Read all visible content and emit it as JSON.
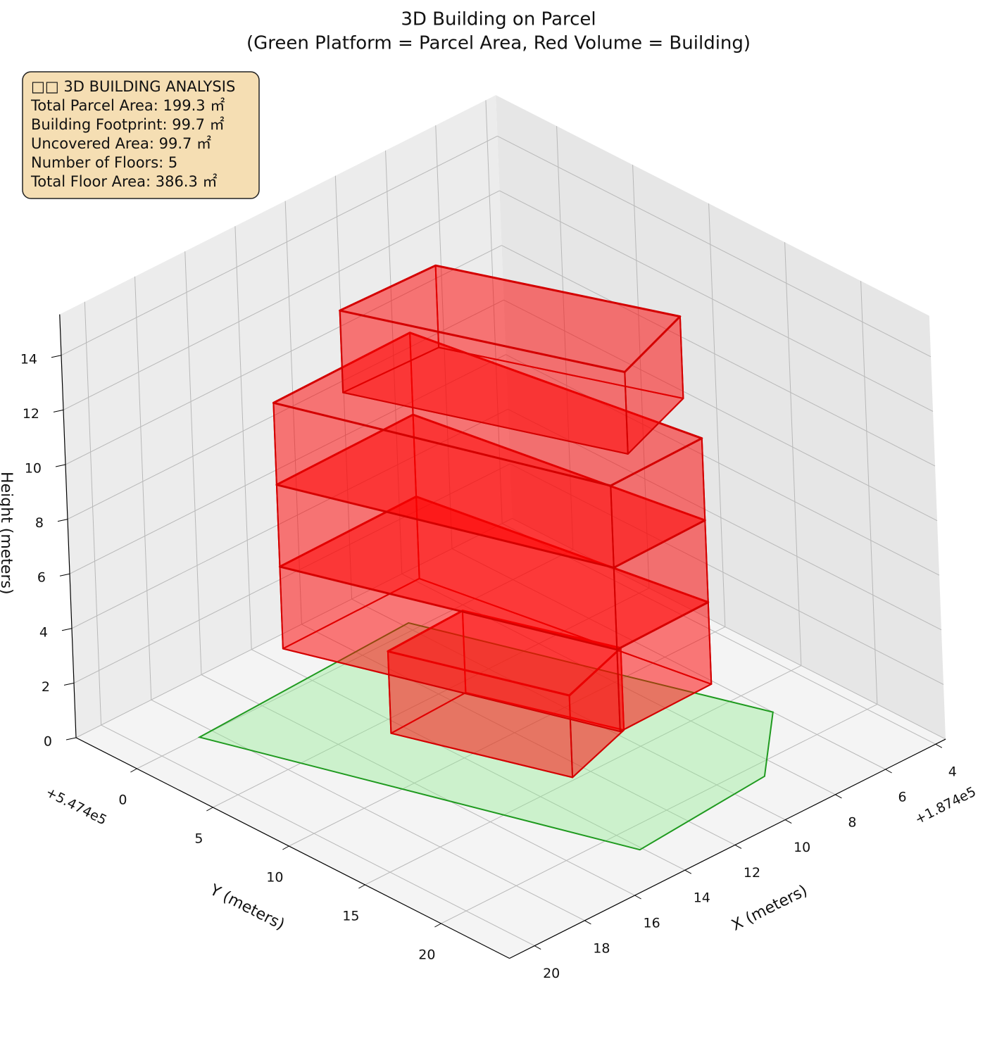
{
  "chart_data": {
    "type": "3d-building",
    "title": "3D Building on Parcel",
    "subtitle": "(Green Platform = Parcel Area, Red Volume = Building)",
    "info": [
      "□□ 3D BUILDING ANALYSIS",
      "Total Parcel Area: 199.3 ㎡",
      "Building Footprint: 99.7 ㎡",
      "Uncovered Area: 99.7 ㎡",
      "Number of Floors: 5",
      "Total Floor Area: 386.3 ㎡"
    ],
    "xlabel": "X (meters)",
    "ylabel": "Y (meters)",
    "zlabel": "Height (meters)",
    "xoffset": "+1.874e5",
    "yoffset": "+5.474e5",
    "xlim": [
      3.6,
      21
    ],
    "ylim": [
      -4,
      24.5
    ],
    "zlim": [
      0,
      15.5
    ],
    "xticks": [
      4,
      6,
      8,
      10,
      12,
      14,
      16,
      18,
      20
    ],
    "yticks": [
      0,
      5,
      10,
      15,
      20
    ],
    "zticks": [
      0,
      2,
      4,
      6,
      8,
      10,
      12,
      14
    ],
    "grid": true,
    "parcel": [
      [
        18.5,
        0.0
      ],
      [
        9.8,
        -0.6
      ],
      [
        6.0,
        17.1
      ],
      [
        8.7,
        21.0
      ],
      [
        14.1,
        21.7
      ]
    ],
    "parcel_color": "#90ee90",
    "parcel_edge": "#1f9a1f",
    "building_color": "#ff0000",
    "building_edge": "#d40000",
    "floors": [
      {
        "z": [
          0,
          3
        ],
        "footprint": [
          [
            14.5,
            6.0
          ],
          [
            11.4,
            5.8
          ],
          [
            9.7,
            13.4
          ],
          [
            12.6,
            14.8
          ]
        ]
      },
      {
        "z": [
          3,
          6
        ],
        "footprint": [
          [
            16.5,
            2.4
          ],
          [
            11.0,
            2.3
          ],
          [
            9.3,
            18.7
          ],
          [
            13.0,
            18.8
          ]
        ]
      },
      {
        "z": [
          6,
          9
        ],
        "footprint": [
          [
            16.5,
            2.4
          ],
          [
            11.0,
            2.3
          ],
          [
            9.3,
            18.7
          ],
          [
            13.0,
            18.8
          ]
        ]
      },
      {
        "z": [
          9,
          12
        ],
        "footprint": [
          [
            16.5,
            2.4
          ],
          [
            11.0,
            2.3
          ],
          [
            9.3,
            18.7
          ],
          [
            13.0,
            18.8
          ]
        ]
      },
      {
        "z": [
          12,
          15
        ],
        "footprint": [
          [
            14.7,
            4.0
          ],
          [
            11.0,
            4.2
          ],
          [
            8.1,
            15.5
          ],
          [
            11.4,
            17.3
          ]
        ]
      }
    ]
  }
}
